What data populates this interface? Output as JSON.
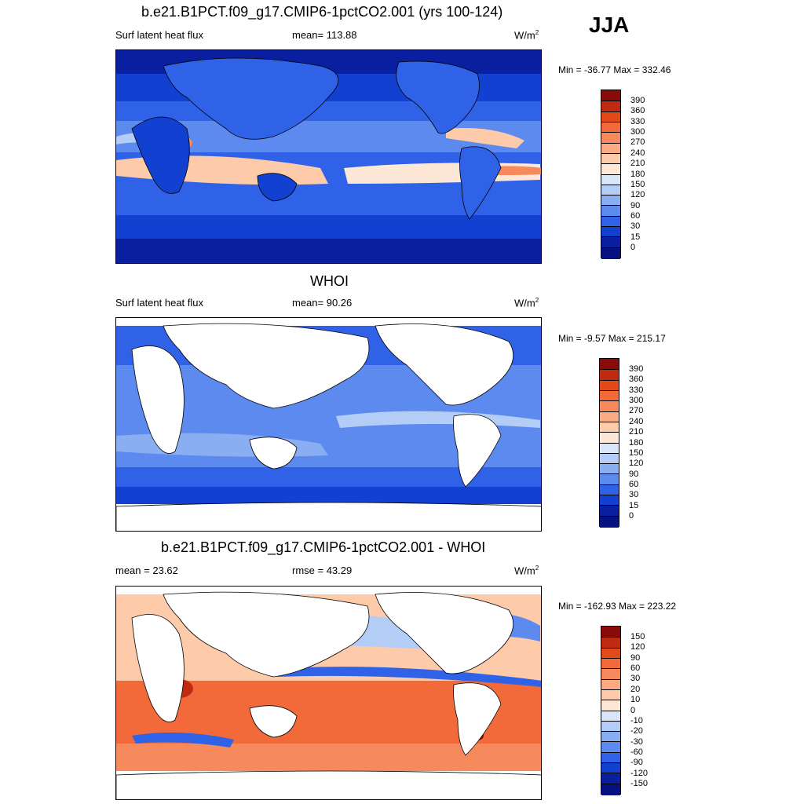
{
  "season": "JJA",
  "units_label": "W/m",
  "units_sup": "2",
  "panels": [
    {
      "title": "b.e21.B1PCT.f09_g17.CMIP6-1pctCO2.001 (yrs 100-124)",
      "left_label": "Surf latent heat flux",
      "center_label": "mean= 113.88",
      "minmax": "Min = -36.77 Max = 332.46",
      "colorbar": [
        "390",
        "360",
        "330",
        "300",
        "270",
        "240",
        "210",
        "180",
        "150",
        "120",
        "90",
        "60",
        "30",
        "15",
        "0"
      ]
    },
    {
      "title": "WHOI",
      "left_label": "Surf latent heat flux",
      "center_label": "mean=  90.26",
      "minmax": "Min =  -9.57 Max = 215.17",
      "colorbar": [
        "390",
        "360",
        "330",
        "300",
        "270",
        "240",
        "210",
        "180",
        "150",
        "120",
        "90",
        "60",
        "30",
        "15",
        "0"
      ]
    },
    {
      "title": "b.e21.B1PCT.f09_g17.CMIP6-1pctCO2.001 - WHOI",
      "left_label": "mean =  23.62",
      "center_label": "rmse =  43.29",
      "minmax": "Min = -162.93 Max = 223.22",
      "colorbar": [
        "150",
        "120",
        "90",
        "60",
        "30",
        "20",
        "10",
        "0",
        "-10",
        "-20",
        "-30",
        "-60",
        "-90",
        "-120",
        "-150"
      ]
    }
  ],
  "colors": {
    "abs_scale": [
      "#8b0a0a",
      "#c02a10",
      "#e24a1a",
      "#f26a3a",
      "#f78a5c",
      "#fbab84",
      "#fdcbaa",
      "#fde8d8",
      "#d8e6f8",
      "#b4cdf6",
      "#8aaef2",
      "#5c8aee",
      "#2f62e6",
      "#1240d0",
      "#0a1ea0",
      "#061080"
    ],
    "diff_scale": [
      "#8b0a0a",
      "#c02a10",
      "#e24a1a",
      "#f26a3a",
      "#f78a5c",
      "#fbab84",
      "#fdcbaa",
      "#fde8d8",
      "#d8e6f8",
      "#b4cdf6",
      "#8aaef2",
      "#5c8aee",
      "#2f62e6",
      "#1240d0",
      "#0a1ea0",
      "#061080"
    ]
  }
}
